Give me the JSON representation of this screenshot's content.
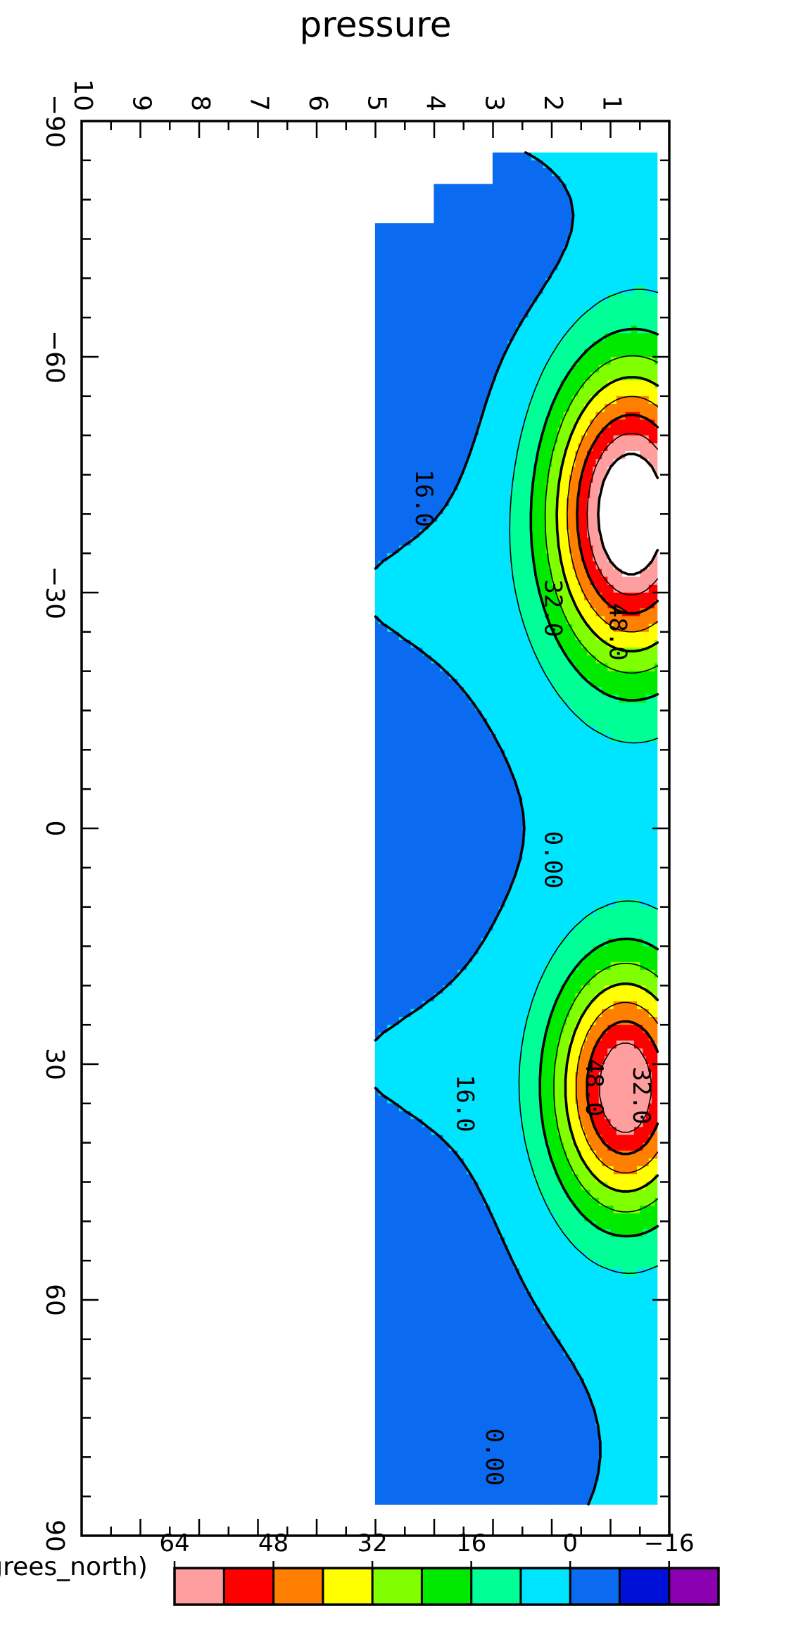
{
  "chart_data": {
    "type": "heatmap",
    "title": "",
    "xlabel": "(degrees_north)",
    "ylabel": "pressure",
    "x_ticks": [
      -90,
      -60,
      -30,
      0,
      30,
      60,
      90
    ],
    "y_ticks": [
      1,
      2,
      3,
      4,
      5,
      6,
      7,
      8,
      9,
      10
    ],
    "xlim": [
      -90,
      90
    ],
    "ylim": [
      10,
      0
    ],
    "colorbar": {
      "levels": [
        -24,
        -16,
        -8,
        0,
        8,
        16,
        24,
        32,
        40,
        48,
        56,
        64
      ],
      "tick_values": [
        -16,
        0,
        16,
        32,
        48,
        64
      ],
      "colors": [
        "#8b00b0",
        "#0010d8",
        "#0a6bf0",
        "#00e5ff",
        "#00ff96",
        "#00ea00",
        "#80ff00",
        "#ffff00",
        "#ff8000",
        "#ff0000",
        "#ff9e9e"
      ],
      "extend_high_color": "#ffffff"
    },
    "contour_labels": [
      {
        "text": "0.00",
        "lat": 80,
        "p": 3.0
      },
      {
        "text": "48.0",
        "lat": 33,
        "p": 1.3
      },
      {
        "text": "32.0",
        "lat": 34,
        "p": 0.5
      },
      {
        "text": "16.0",
        "lat": 35,
        "p": 3.5
      },
      {
        "text": "0.00",
        "lat": 4,
        "p": 2.0
      },
      {
        "text": "48.0",
        "lat": -25,
        "p": 0.9
      },
      {
        "text": "32.0",
        "lat": -28,
        "p": 2.0
      },
      {
        "text": "16.0",
        "lat": -42,
        "p": 4.2
      }
    ],
    "grid": {
      "lat": [
        -85,
        -80,
        -75,
        -70,
        -65,
        -60,
        -55,
        -50,
        -45,
        -40,
        -35,
        -30,
        -25,
        -20,
        -15,
        -10,
        -5,
        0,
        5,
        10,
        15,
        20,
        25,
        30,
        35,
        40,
        45,
        50,
        55,
        60,
        65,
        70,
        75,
        80,
        85
      ],
      "p": [
        0.25,
        0.5,
        1.0,
        1.5,
        2.0,
        2.5,
        3.0,
        3.5,
        4.0,
        4.5,
        5.0
      ]
    }
  }
}
